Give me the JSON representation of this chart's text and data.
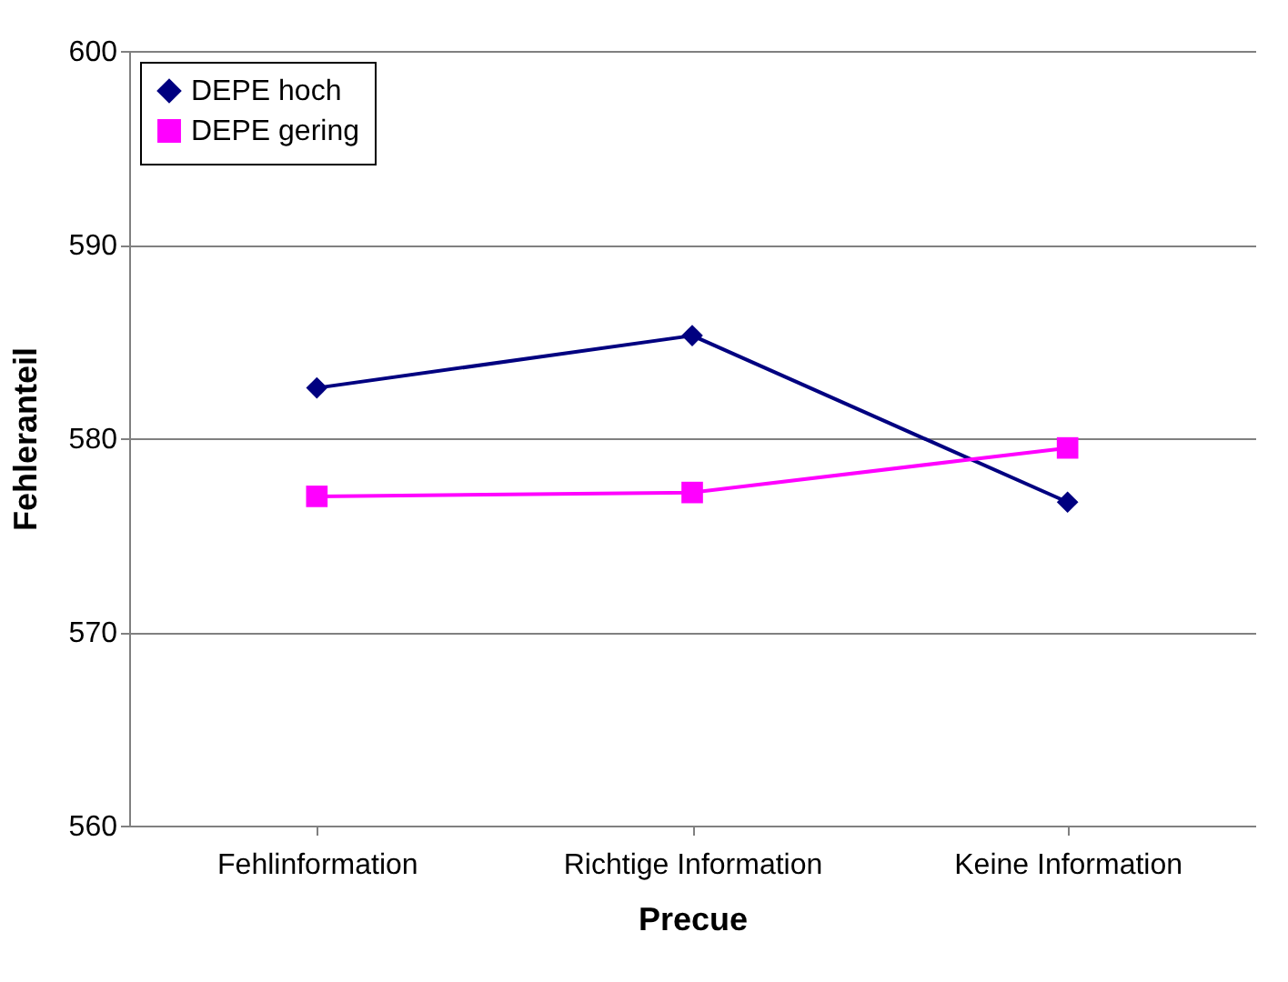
{
  "chart_data": {
    "type": "line",
    "xlabel": "Precue",
    "ylabel": "Fehleranteil",
    "categories": [
      "Fehlinformation",
      "Richtige Information",
      "Keine Information"
    ],
    "series": [
      {
        "name": "DEPE hoch",
        "color": "#000080",
        "values": [
          582.6,
          585.3,
          576.7
        ],
        "marker": "diamond"
      },
      {
        "name": "DEPE gering",
        "color": "#ff00ff",
        "values": [
          577.0,
          577.2,
          579.5
        ],
        "marker": "square"
      }
    ],
    "ylim": [
      560,
      600
    ],
    "yticks": [
      560,
      570,
      580,
      590,
      600
    ],
    "grid": "y",
    "legend": "top left",
    "line_style": "solid"
  }
}
